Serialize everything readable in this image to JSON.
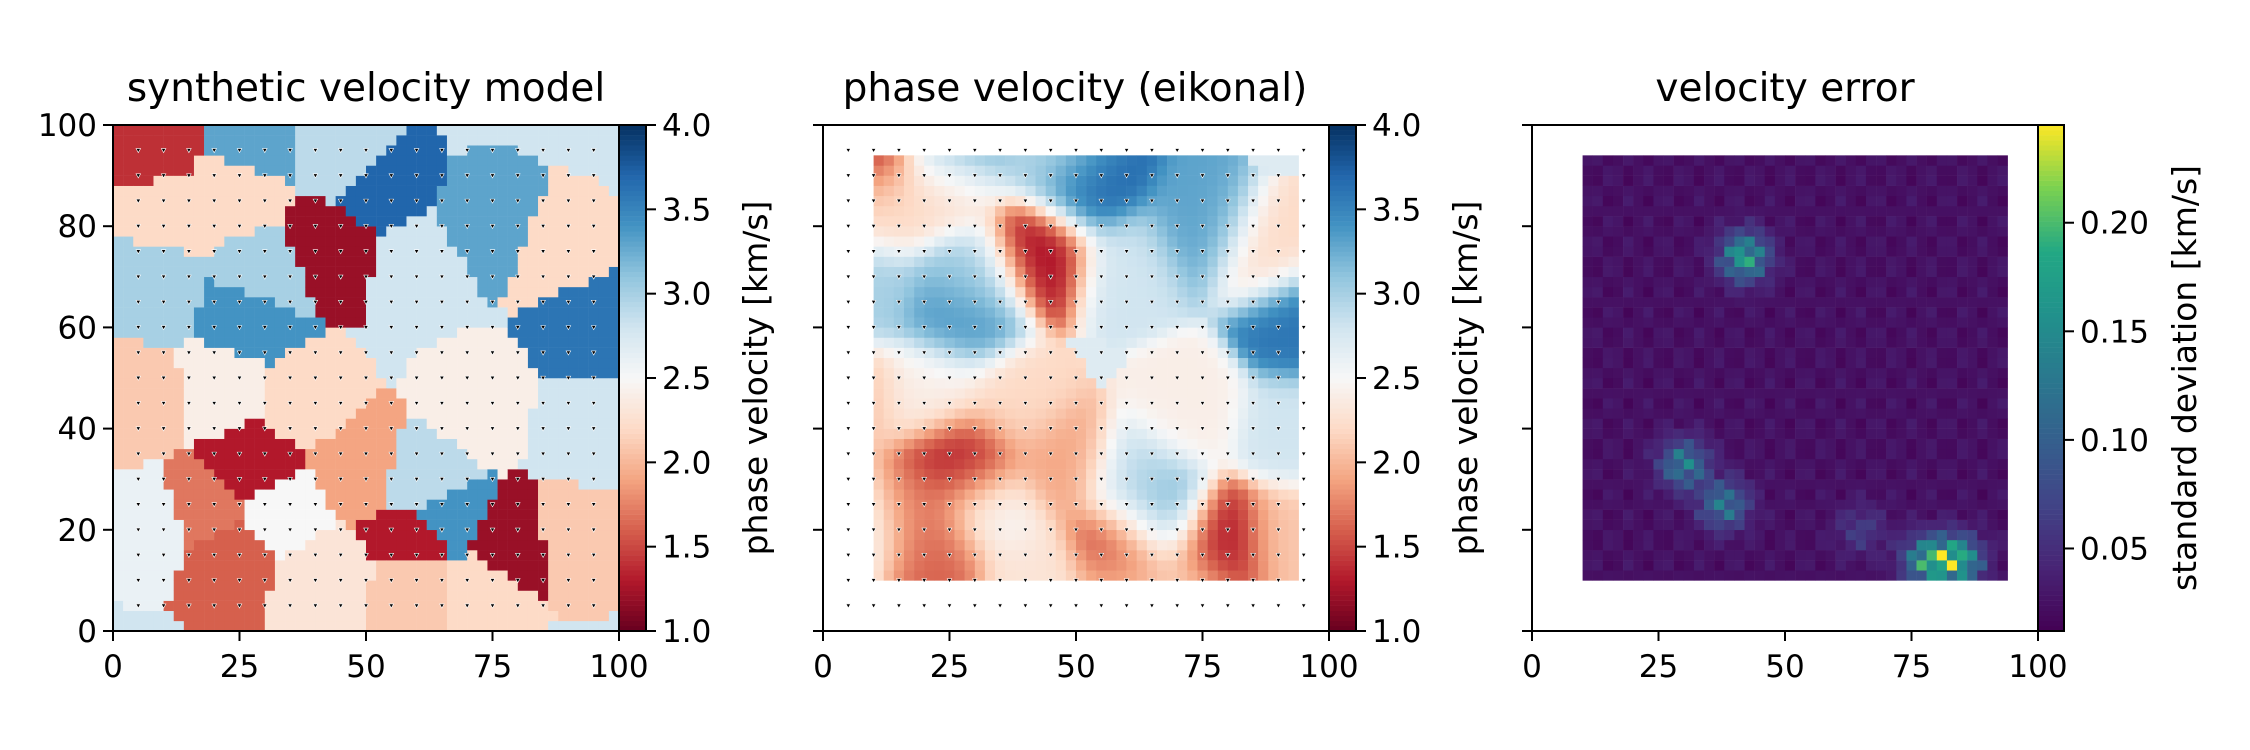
{
  "chart_data": [
    {
      "type": "heatmap",
      "title": "synthetic velocity model",
      "xlim": [
        0,
        100
      ],
      "ylim": [
        0,
        100
      ],
      "xticks": [
        "0",
        "25",
        "50",
        "75",
        "100"
      ],
      "yticks": [
        "0",
        "20",
        "40",
        "60",
        "80",
        "100"
      ],
      "colormap": "RdBu",
      "colorbar": {
        "label": "phase velocity [km/s]",
        "range": [
          1.0,
          4.0
        ],
        "ticks": [
          "1.0",
          "1.5",
          "2.0",
          "2.5",
          "3.0",
          "3.5",
          "4.0"
        ]
      },
      "background_velocity": 2.8,
      "regions": [
        {
          "x": 8,
          "y": 95,
          "v": 1.4
        },
        {
          "x": 27,
          "y": 96,
          "v": 3.3
        },
        {
          "x": 24,
          "y": 88,
          "v": 2.2
        },
        {
          "x": 11,
          "y": 84,
          "v": 2.2
        },
        {
          "x": 46,
          "y": 94,
          "v": 2.9
        },
        {
          "x": 52,
          "y": 88,
          "v": 3.7
        },
        {
          "x": 43,
          "y": 75,
          "v": 1.2
        },
        {
          "x": 30,
          "y": 70,
          "v": 3.0
        },
        {
          "x": 27,
          "y": 62,
          "v": 3.4
        },
        {
          "x": 8,
          "y": 68,
          "v": 3.0
        },
        {
          "x": 75,
          "y": 80,
          "v": 3.3
        },
        {
          "x": 88,
          "y": 75,
          "v": 2.2
        },
        {
          "x": 94,
          "y": 61,
          "v": 3.6
        },
        {
          "x": 60,
          "y": 72,
          "v": 2.8
        },
        {
          "x": 5,
          "y": 46,
          "v": 2.1
        },
        {
          "x": 22,
          "y": 48,
          "v": 2.4
        },
        {
          "x": 38,
          "y": 45,
          "v": 2.2
        },
        {
          "x": 28,
          "y": 33,
          "v": 1.3
        },
        {
          "x": 33,
          "y": 24,
          "v": 2.5
        },
        {
          "x": 48,
          "y": 33,
          "v": 1.9
        },
        {
          "x": 62,
          "y": 30,
          "v": 2.9
        },
        {
          "x": 72,
          "y": 44,
          "v": 2.4
        },
        {
          "x": 93,
          "y": 40,
          "v": 2.8
        },
        {
          "x": 22,
          "y": 15,
          "v": 1.6
        },
        {
          "x": 18,
          "y": 23,
          "v": 1.7
        },
        {
          "x": 42,
          "y": 10,
          "v": 2.3
        },
        {
          "x": 60,
          "y": 9,
          "v": 2.1
        },
        {
          "x": 66,
          "y": 22,
          "v": 3.4
        },
        {
          "x": 60,
          "y": 17,
          "v": 1.3
        },
        {
          "x": 78,
          "y": 17,
          "v": 1.2
        },
        {
          "x": 72,
          "y": 8,
          "v": 2.2
        },
        {
          "x": 92,
          "y": 18,
          "v": 2.1
        },
        {
          "x": 8,
          "y": 20,
          "v": 2.6
        }
      ],
      "stations": "grid 5..95 step 5 in x and y"
    },
    {
      "type": "heatmap",
      "title": "phase velocity (eikonal)",
      "xlim": [
        0,
        100
      ],
      "ylim": [
        0,
        100
      ],
      "xticks": [
        "0",
        "25",
        "50",
        "75",
        "100"
      ],
      "yticks": [
        "0",
        "20",
        "40",
        "60",
        "80",
        "100"
      ],
      "colormap": "RdBu",
      "colorbar": {
        "label": "phase velocity [km/s]",
        "range": [
          1.0,
          4.0
        ],
        "ticks": [
          "1.0",
          "1.5",
          "2.0",
          "2.5",
          "3.0",
          "3.5",
          "4.0"
        ]
      },
      "coverage": {
        "x": [
          10,
          93
        ],
        "y": [
          10,
          93
        ]
      }
    },
    {
      "type": "heatmap",
      "title": "velocity error",
      "xlim": [
        0,
        100
      ],
      "ylim": [
        0,
        100
      ],
      "xticks": [
        "0",
        "25",
        "50",
        "75",
        "100"
      ],
      "colormap": "viridis",
      "colorbar": {
        "label": "standard deviation [km/s]",
        "range": [
          0.012,
          0.245
        ],
        "ticks": [
          "0.05",
          "0.10",
          "0.15",
          "0.20"
        ]
      },
      "coverage": {
        "x": [
          10,
          93
        ],
        "y": [
          10,
          93
        ]
      },
      "hotspots": [
        {
          "x": 42,
          "y": 74,
          "v": 0.22
        },
        {
          "x": 30,
          "y": 33,
          "v": 0.17
        },
        {
          "x": 38,
          "y": 25,
          "v": 0.16
        },
        {
          "x": 78,
          "y": 14,
          "v": 0.2
        },
        {
          "x": 84,
          "y": 14,
          "v": 0.24
        },
        {
          "x": 65,
          "y": 20,
          "v": 0.08
        }
      ]
    }
  ],
  "axes_labels": {
    "title1": "synthetic velocity model",
    "title2": "phase velocity (eikonal)",
    "title3": "velocity error",
    "cbar1": "phase velocity [km/s]",
    "cbar2": "phase velocity [km/s]",
    "cbar3": "standard deviation [km/s]"
  }
}
